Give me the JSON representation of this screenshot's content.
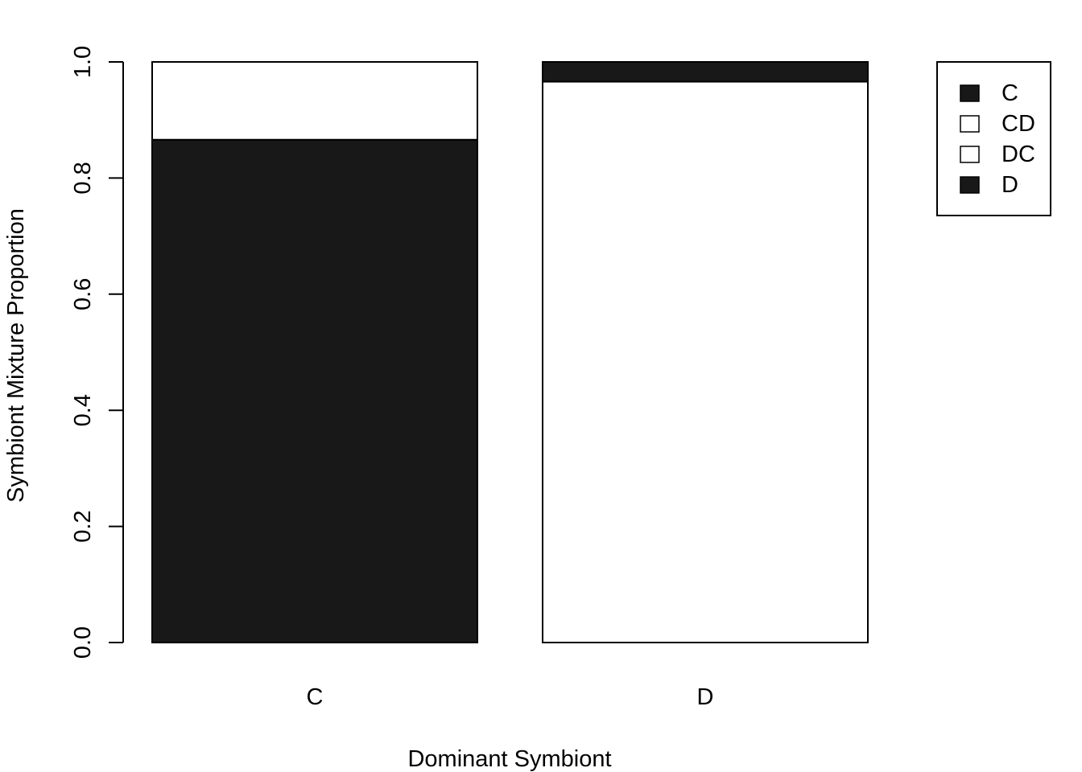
{
  "chart_data": {
    "type": "bar",
    "stacked": true,
    "title": "",
    "xlabel": "Dominant Symbiont",
    "ylabel": "Symbiont Mixture Proportion",
    "ylim": [
      0,
      1
    ],
    "yticks": [
      "0.0",
      "0.2",
      "0.4",
      "0.6",
      "0.8",
      "1.0"
    ],
    "categories": [
      "C",
      "D"
    ],
    "series": [
      {
        "name": "C",
        "color": "#181818",
        "values": [
          0.866,
          0.0
        ]
      },
      {
        "name": "CD",
        "color": "#ffffff",
        "values": [
          0.134,
          0.0
        ]
      },
      {
        "name": "DC",
        "color": "#ffffff",
        "values": [
          0.0,
          0.966
        ]
      },
      {
        "name": "D",
        "color": "#181818",
        "values": [
          0.0,
          0.034
        ]
      }
    ],
    "legend": {
      "position": "top-right"
    },
    "grid": false
  }
}
